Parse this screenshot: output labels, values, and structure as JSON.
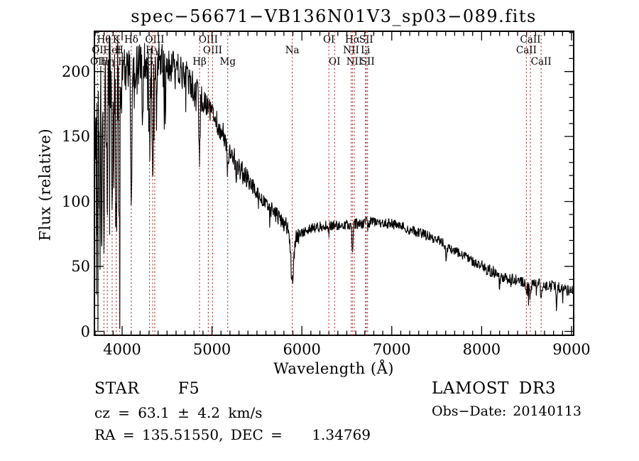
{
  "title": "spec−56671−VB136N01V3_sp03−089.fits",
  "chart_data": {
    "type": "line",
    "title": "spec−56671−VB136N01V3_sp03−089.fits",
    "xlabel": "Wavelength (Å)",
    "ylabel": "Flux (relative)",
    "xlim": [
      3692,
      9024
    ],
    "ylim": [
      -3,
      231
    ],
    "xticks": [
      4000,
      5000,
      6000,
      7000,
      8000,
      9000
    ],
    "yticks": [
      0,
      50,
      100,
      150,
      200
    ],
    "x_minor_step": 100,
    "y_minor_step": 10,
    "grid": false,
    "spectrum_color": "#000000",
    "marker_line_color": "#a03028",
    "seed": 20140113,
    "samples": 1360,
    "continuum": [
      [
        3692,
        148
      ],
      [
        3725,
        168
      ],
      [
        3775,
        178
      ],
      [
        3825,
        186
      ],
      [
        3885,
        193
      ],
      [
        3955,
        197
      ],
      [
        4050,
        201
      ],
      [
        4150,
        203
      ],
      [
        4250,
        204
      ],
      [
        4350,
        205
      ],
      [
        4450,
        206
      ],
      [
        4550,
        204
      ],
      [
        4650,
        201
      ],
      [
        4740,
        194
      ],
      [
        4820,
        183
      ],
      [
        4900,
        177
      ],
      [
        4960,
        171
      ],
      [
        5020,
        165
      ],
      [
        5100,
        155
      ],
      [
        5180,
        144
      ],
      [
        5260,
        131
      ],
      [
        5350,
        121
      ],
      [
        5450,
        112
      ],
      [
        5550,
        103
      ],
      [
        5650,
        95
      ],
      [
        5750,
        87
      ],
      [
        5830,
        81
      ],
      [
        5950,
        73
      ],
      [
        6050,
        78
      ],
      [
        6150,
        80
      ],
      [
        6250,
        81
      ],
      [
        6350,
        82
      ],
      [
        6450,
        82
      ],
      [
        6550,
        82
      ],
      [
        6650,
        83
      ],
      [
        6750,
        84
      ],
      [
        6850,
        84
      ],
      [
        6950,
        83
      ],
      [
        7050,
        82
      ],
      [
        7150,
        80
      ],
      [
        7250,
        77
      ],
      [
        7350,
        75
      ],
      [
        7450,
        72
      ],
      [
        7550,
        69
      ],
      [
        7650,
        64
      ],
      [
        7750,
        60
      ],
      [
        7850,
        56
      ],
      [
        7950,
        52
      ],
      [
        8050,
        48
      ],
      [
        8150,
        45
      ],
      [
        8250,
        42
      ],
      [
        8350,
        40
      ],
      [
        8450,
        38
      ],
      [
        8550,
        37
      ],
      [
        8650,
        36
      ],
      [
        8750,
        35
      ],
      [
        8850,
        34
      ],
      [
        8950,
        32
      ],
      [
        9024,
        31
      ]
    ],
    "absorption_lines": [
      [
        3727,
        60,
        5
      ],
      [
        3750,
        70,
        4
      ],
      [
        3771,
        80,
        4
      ],
      [
        3798,
        100,
        5
      ],
      [
        3835,
        108,
        5
      ],
      [
        3889,
        118,
        5
      ],
      [
        3934,
        138,
        6
      ],
      [
        3969,
        132,
        6
      ],
      [
        4102,
        112,
        6
      ],
      [
        4227,
        48,
        4
      ],
      [
        4305,
        62,
        7
      ],
      [
        4340,
        96,
        6
      ],
      [
        4383,
        52,
        4
      ],
      [
        4481,
        36,
        4
      ],
      [
        4861,
        52,
        6
      ],
      [
        5175,
        24,
        9
      ],
      [
        5270,
        16,
        6
      ],
      [
        5893,
        39,
        16
      ],
      [
        6300,
        6,
        4
      ],
      [
        6563,
        25,
        5
      ],
      [
        7190,
        6,
        8
      ],
      [
        7605,
        9,
        7
      ],
      [
        8200,
        8,
        5
      ],
      [
        8498,
        9,
        6
      ],
      [
        8542,
        11,
        7
      ],
      [
        8662,
        10,
        7
      ],
      [
        8834,
        16,
        5
      ]
    ],
    "noise_bands": [
      [
        3692,
        3820,
        48,
        0.28,
        180
      ],
      [
        3820,
        3980,
        40,
        0.16,
        140
      ],
      [
        3980,
        4500,
        18,
        0.07,
        55
      ],
      [
        4500,
        4900,
        13,
        0.04,
        30
      ],
      [
        4900,
        5400,
        9,
        0.025,
        18
      ],
      [
        5400,
        5990,
        6.5,
        0.02,
        12
      ],
      [
        5990,
        7000,
        4.2,
        0.015,
        10
      ],
      [
        7000,
        8000,
        3.8,
        0.015,
        10
      ],
      [
        8000,
        9024,
        4.8,
        0.04,
        16
      ]
    ],
    "marker_lines": [
      3727,
      3798,
      3835,
      3889,
      3934,
      3969,
      4102,
      4305,
      4340,
      4363,
      4861,
      4959,
      5007,
      5175,
      5893,
      6300,
      6364,
      6548,
      6563,
      6583,
      6708,
      6716,
      6731,
      8498,
      8542,
      8662
    ],
    "line_markers": [
      {
        "label": "Hθ",
        "wavelength": 3798,
        "row": 0
      },
      {
        "label": "K",
        "wavelength": 3934,
        "row": 0
      },
      {
        "label": "Hδ",
        "wavelength": 4102,
        "row": 0
      },
      {
        "label": "OIII",
        "wavelength": 4363,
        "row": 0
      },
      {
        "label": "OIII",
        "wavelength": 4959,
        "row": 0
      },
      {
        "label": "OI",
        "wavelength": 6300,
        "row": 0
      },
      {
        "label": "Hα",
        "wavelength": 6563,
        "row": 0
      },
      {
        "label": "SII",
        "wavelength": 6716,
        "row": 0
      },
      {
        "label": "CaII",
        "wavelength": 8542,
        "row": 0
      },
      {
        "label": "OI",
        "wavelength": 3727,
        "row": 1
      },
      {
        "label": "HeI",
        "wavelength": 3889,
        "row": 1
      },
      {
        "label": "H",
        "wavelength": 3969,
        "row": 1
      },
      {
        "label": "Hγ",
        "wavelength": 4340,
        "row": 1
      },
      {
        "label": "OIII",
        "wavelength": 5007,
        "row": 1
      },
      {
        "label": "Na",
        "wavelength": 5893,
        "row": 1
      },
      {
        "label": "NII",
        "wavelength": 6548,
        "row": 1
      },
      {
        "label": "Li",
        "wavelength": 6708,
        "row": 1
      },
      {
        "label": "CaII",
        "wavelength": 8498,
        "row": 1
      },
      {
        "label": "OII",
        "wavelength": 3731,
        "row": 2
      },
      {
        "label": "Hη",
        "wavelength": 3835,
        "row": 2
      },
      {
        "label": "H",
        "wavelength": 4000,
        "row": 2
      },
      {
        "label": "G",
        "wavelength": 4305,
        "row": 2
      },
      {
        "label": "Hβ",
        "wavelength": 4861,
        "row": 2
      },
      {
        "label": "Mg",
        "wavelength": 5175,
        "row": 2
      },
      {
        "label": "OI",
        "wavelength": 6364,
        "row": 2
      },
      {
        "label": "NII",
        "wavelength": 6583,
        "row": 2
      },
      {
        "label": "SII",
        "wavelength": 6731,
        "row": 2
      },
      {
        "label": "CaII",
        "wavelength": 8662,
        "row": 2
      }
    ]
  },
  "footer": {
    "classification": "STAR    F5",
    "velocity": "cz = 63.1 ± 4.2 km/s",
    "coordinates": "RA = 135.51550, DEC =    1.34769",
    "survey": "LAMOST DR3",
    "obs_date": "Obs−Date: 20140113"
  }
}
